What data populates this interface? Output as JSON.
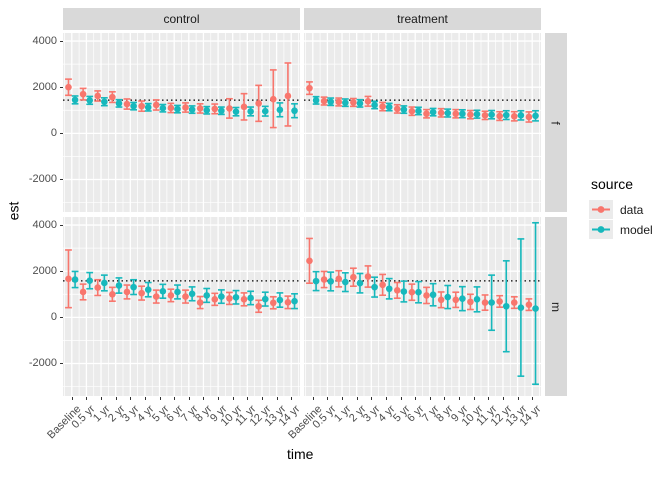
{
  "strips": {
    "cols": [
      "control",
      "treatment"
    ],
    "rows": [
      "f",
      "m"
    ]
  },
  "axes": {
    "x_title": "time",
    "y_title": "est",
    "y_tick_labels": [
      "4000",
      "2000",
      "0",
      "-2000"
    ],
    "y_tick_values": [
      4000,
      2000,
      0,
      -2000
    ],
    "y_minor_values": [
      3000,
      1000,
      -1000,
      -3000
    ],
    "y_range": [
      -3410,
      4350
    ]
  },
  "legend": {
    "title": "source",
    "items": [
      {
        "label": "data",
        "color": "#F8766D"
      },
      {
        "label": "model",
        "color": "#17B8BC"
      }
    ]
  },
  "colors": {
    "data": "#F8766D",
    "model": "#17B8BC",
    "panel_bg": "#EBEBEB",
    "strip_bg": "#D9D9D9",
    "grid": "#FFFFFF",
    "ref_line": "#000000",
    "tick_text": "#4D4D4D"
  },
  "chart_data": {
    "type": "pointrange-errorbar-facet-grid",
    "title": "",
    "xlabel": "time",
    "ylabel": "est",
    "ylim": [
      -3410,
      4350
    ],
    "grid": true,
    "legend_position": "right",
    "categories": [
      "Baseline",
      "0.5 yr",
      "1 yr",
      "2 yr",
      "3 yr",
      "4 yr",
      "5 yr",
      "6 yr",
      "7 yr",
      "8 yr",
      "9 yr",
      "10 yr",
      "11 yr",
      "12 yr",
      "13 yr",
      "14 yr"
    ],
    "panels": [
      {
        "col": "control",
        "row": "f",
        "ref_line": 1440,
        "series": [
          {
            "name": "data",
            "est": [
              2000,
              1700,
              1620,
              1570,
              1270,
              1180,
              1230,
              1100,
              1120,
              1080,
              1060,
              1080,
              1150,
              1300,
              1480,
              1620
            ],
            "lo": [
              1650,
              1450,
              1400,
              1340,
              1050,
              960,
              1010,
              900,
              920,
              880,
              850,
              660,
              580,
              520,
              250,
              320
            ],
            "hi": [
              2350,
              1950,
              1840,
              1800,
              1490,
              1400,
              1450,
              1300,
              1320,
              1280,
              1270,
              1500,
              1720,
              2080,
              2750,
              3050
            ]
          },
          {
            "name": "model",
            "est": [
              1450,
              1430,
              1370,
              1300,
              1180,
              1130,
              1090,
              1050,
              1030,
              1000,
              980,
              940,
              950,
              960,
              1020,
              980
            ],
            "lo": [
              1280,
              1260,
              1200,
              1140,
              1020,
              970,
              930,
              890,
              870,
              840,
              820,
              760,
              760,
              750,
              720,
              680
            ],
            "hi": [
              1620,
              1600,
              1540,
              1460,
              1340,
              1290,
              1250,
              1210,
              1190,
              1160,
              1140,
              1120,
              1140,
              1170,
              1320,
              1280
            ]
          }
        ]
      },
      {
        "col": "treatment",
        "row": "f",
        "ref_line": 1440,
        "series": [
          {
            "name": "data",
            "est": [
              1960,
              1400,
              1360,
              1340,
              1390,
              1160,
              1060,
              960,
              850,
              890,
              850,
              810,
              780,
              750,
              740,
              710
            ],
            "lo": [
              1690,
              1230,
              1190,
              1170,
              1180,
              980,
              880,
              780,
              670,
              710,
              670,
              630,
              600,
              560,
              540,
              490
            ],
            "hi": [
              2230,
              1570,
              1530,
              1510,
              1600,
              1340,
              1240,
              1140,
              1030,
              1070,
              1030,
              990,
              960,
              940,
              940,
              930
            ]
          },
          {
            "name": "model",
            "est": [
              1430,
              1370,
              1330,
              1300,
              1230,
              1140,
              1030,
              970,
              920,
              880,
              850,
              830,
              810,
              790,
              780,
              760
            ],
            "lo": [
              1270,
              1210,
              1170,
              1140,
              1070,
              980,
              870,
              810,
              760,
              710,
              680,
              660,
              630,
              600,
              580,
              540
            ],
            "hi": [
              1590,
              1530,
              1490,
              1460,
              1390,
              1300,
              1190,
              1130,
              1080,
              1050,
              1020,
              1000,
              990,
              980,
              980,
              980
            ]
          }
        ]
      },
      {
        "col": "control",
        "row": "m",
        "ref_line": 1580,
        "series": [
          {
            "name": "data",
            "est": [
              1670,
              1100,
              1290,
              1000,
              1100,
              1050,
              900,
              950,
              900,
              640,
              780,
              820,
              780,
              480,
              630,
              650
            ],
            "lo": [
              420,
              760,
              950,
              700,
              800,
              750,
              620,
              680,
              620,
              380,
              520,
              560,
              500,
              220,
              370,
              380
            ],
            "hi": [
              2920,
              1440,
              1630,
              1300,
              1400,
              1350,
              1180,
              1220,
              1180,
              900,
              1040,
              1080,
              1060,
              740,
              890,
              920
            ]
          },
          {
            "name": "model",
            "est": [
              1640,
              1590,
              1490,
              1380,
              1310,
              1200,
              1130,
              1100,
              1020,
              950,
              900,
              870,
              840,
              790,
              750,
              700
            ],
            "lo": [
              1290,
              1240,
              1150,
              1050,
              990,
              890,
              830,
              800,
              720,
              650,
              610,
              580,
              550,
              490,
              440,
              380
            ],
            "hi": [
              1990,
              1940,
              1830,
              1710,
              1630,
              1510,
              1430,
              1400,
              1320,
              1250,
              1190,
              1160,
              1130,
              1090,
              1060,
              1020
            ]
          }
        ]
      },
      {
        "col": "treatment",
        "row": "m",
        "ref_line": 1580,
        "series": [
          {
            "name": "data",
            "est": [
              2450,
              1640,
              1670,
              1740,
              1770,
              1410,
              1170,
              1090,
              950,
              760,
              760,
              670,
              640,
              690,
              640,
              550
            ],
            "lo": [
              1480,
              1290,
              1320,
              1350,
              1310,
              960,
              830,
              740,
              600,
              420,
              430,
              340,
              310,
              440,
              390,
              300
            ],
            "hi": [
              3420,
              1990,
              2020,
              2130,
              2230,
              1860,
              1510,
              1440,
              1300,
              1100,
              1090,
              1000,
              970,
              940,
              890,
              800
            ]
          },
          {
            "name": "model",
            "est": [
              1570,
              1560,
              1530,
              1480,
              1310,
              1240,
              1120,
              1090,
              980,
              880,
              810,
              780,
              640,
              480,
              420,
              380
            ],
            "lo": [
              1160,
              1150,
              1120,
              1060,
              880,
              800,
              670,
              630,
              500,
              380,
              290,
              240,
              -560,
              -1490,
              -2550,
              -2900
            ],
            "hi": [
              1980,
              1960,
              1930,
              1900,
              1740,
              1680,
              1570,
              1550,
              1460,
              1380,
              1330,
              1320,
              1830,
              2450,
              3400,
              4100
            ]
          }
        ]
      }
    ]
  }
}
